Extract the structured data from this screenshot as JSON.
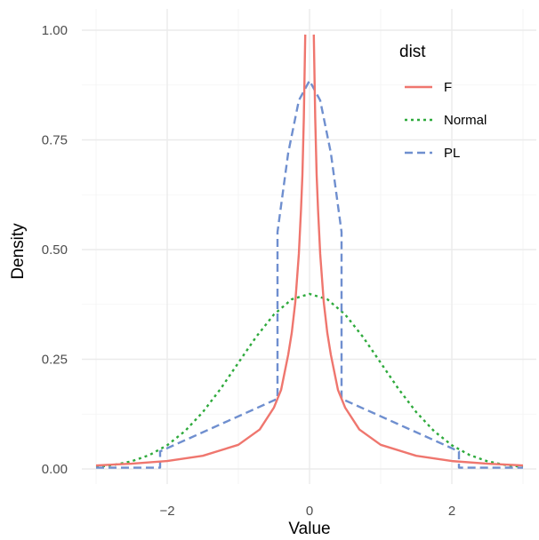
{
  "chart_data": {
    "type": "line",
    "xlabel": "Value",
    "ylabel": "Density",
    "xlim": [
      -3,
      3
    ],
    "ylim": [
      0,
      1
    ],
    "x_ticks": [
      -2,
      0,
      2
    ],
    "x_tick_labels": [
      "−2",
      "0",
      "2"
    ],
    "y_ticks": [
      0,
      0.25,
      0.5,
      0.75,
      1
    ],
    "y_tick_labels": [
      "0.00",
      "0.25",
      "0.50",
      "0.75",
      "1.00"
    ],
    "grid": true,
    "legend": {
      "title": "dist",
      "placement": "top-right",
      "entries": [
        "F",
        "Normal",
        "PL"
      ]
    },
    "series": [
      {
        "name": "F",
        "color": "#ef766e",
        "dash": "solid",
        "x": [
          -3,
          -2.5,
          -2,
          -1.5,
          -1,
          -0.7,
          -0.5,
          -0.4,
          -0.3,
          -0.25,
          -0.2,
          -0.15,
          -0.12,
          -0.1,
          -0.08,
          -0.06
        ],
        "y": [
          0.008,
          0.012,
          0.018,
          0.03,
          0.055,
          0.09,
          0.14,
          0.18,
          0.26,
          0.31,
          0.38,
          0.49,
          0.59,
          0.67,
          0.8,
          0.99
        ],
        "x2": [
          0.06,
          0.08,
          0.1,
          0.12,
          0.15,
          0.2,
          0.25,
          0.3,
          0.4,
          0.5,
          0.7,
          1,
          1.5,
          2,
          2.5,
          3
        ],
        "y2": [
          0.99,
          0.8,
          0.67,
          0.59,
          0.49,
          0.38,
          0.31,
          0.26,
          0.18,
          0.14,
          0.09,
          0.055,
          0.03,
          0.018,
          0.012,
          0.008
        ]
      },
      {
        "name": "Normal",
        "color": "#2eaa3c",
        "dash": "dotted",
        "x": [
          -3,
          -2.75,
          -2.5,
          -2.25,
          -2,
          -1.75,
          -1.5,
          -1.25,
          -1,
          -0.75,
          -0.5,
          -0.25,
          0,
          0.25,
          0.5,
          0.75,
          1,
          1.25,
          1.5,
          1.75,
          2,
          2.25,
          2.5,
          2.75,
          3
        ],
        "y": [
          0.0044,
          0.0091,
          0.0175,
          0.0317,
          0.054,
          0.0863,
          0.1295,
          0.1826,
          0.242,
          0.3011,
          0.3521,
          0.3867,
          0.3989,
          0.3867,
          0.3521,
          0.3011,
          0.242,
          0.1826,
          0.1295,
          0.0863,
          0.054,
          0.0317,
          0.0175,
          0.0091,
          0.0044
        ]
      },
      {
        "name": "PL",
        "color": "#6f8fcf",
        "dash": "dashed",
        "x": [
          -3,
          -2.1,
          -2.1,
          -0.45,
          -0.45,
          -0.3,
          -0.15,
          0,
          0.15,
          0.3,
          0.45,
          0.45,
          2.1,
          2.1,
          3
        ],
        "y": [
          0.003,
          0.003,
          0.04,
          0.16,
          0.54,
          0.72,
          0.84,
          0.885,
          0.84,
          0.72,
          0.54,
          0.16,
          0.04,
          0.003,
          0.003
        ]
      }
    ]
  }
}
